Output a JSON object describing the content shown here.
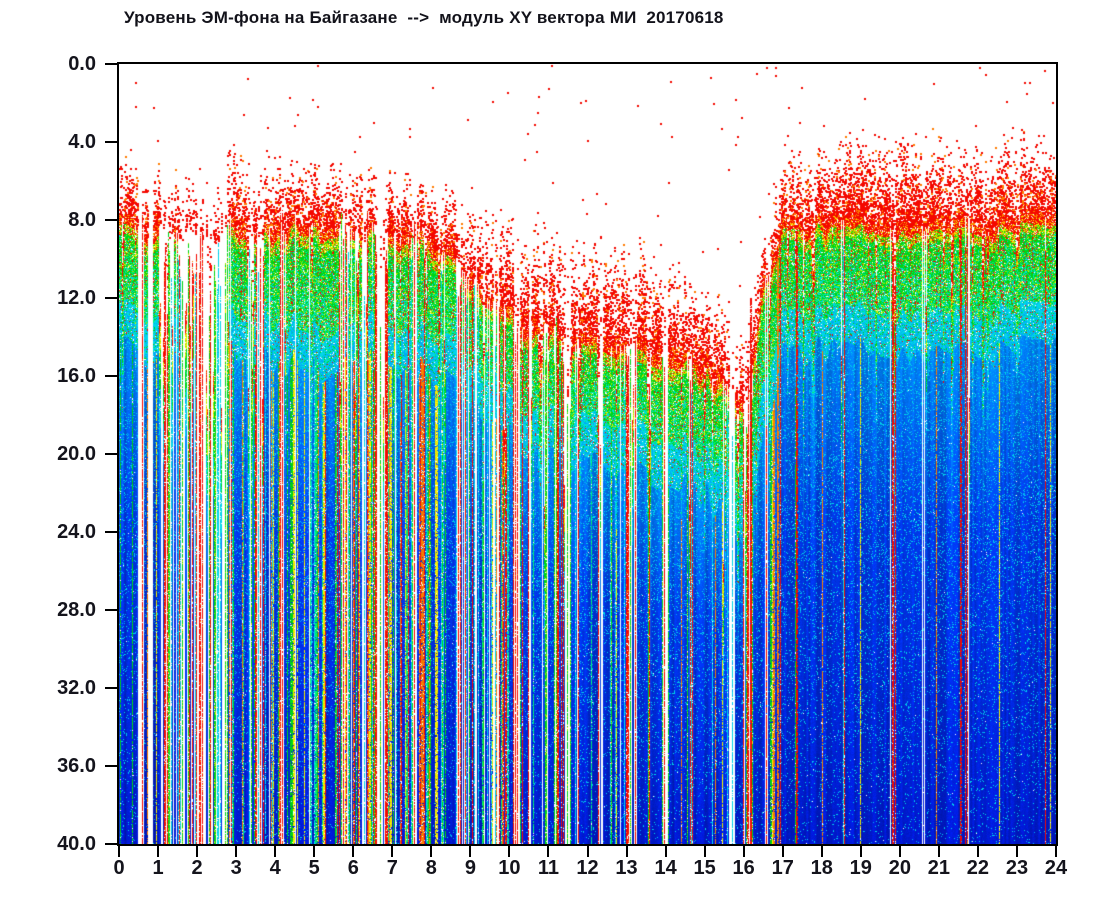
{
  "chart_data": {
    "type": "heatmap",
    "title": "Уровень ЭМ-фона на Байгазане  -->  модуль XY вектора МИ  20170618",
    "x_axis": {
      "min": 0,
      "max": 24,
      "ticks": [
        "0",
        "1",
        "2",
        "3",
        "4",
        "5",
        "6",
        "7",
        "8",
        "9",
        "10",
        "11",
        "12",
        "13",
        "14",
        "15",
        "16",
        "17",
        "18",
        "19",
        "20",
        "21",
        "22",
        "23",
        "24"
      ]
    },
    "y_axis": {
      "min": 0,
      "max": 40,
      "inverted": true,
      "ticks": [
        "0.0",
        "4.0",
        "8.0",
        "12.0",
        "16.0",
        "20.0",
        "24.0",
        "28.0",
        "32.0",
        "36.0",
        "40.0"
      ]
    },
    "palette": {
      "red": "#f40800",
      "orange": "#ff7c00",
      "yellow": "#f4ec00",
      "yellow_green": "#96e400",
      "green": "#00d414",
      "spring": "#00e87c",
      "cyan": "#00d8e8",
      "sky": "#00aaf4",
      "light_blue": "#0080f0",
      "mid_blue": "#0038e6",
      "deep_blue": "#0018cc",
      "white": "#ffffff"
    },
    "render": {
      "seed": 20170618
    },
    "profile_keyframes": [
      {
        "t": 0.0,
        "top": 4.5,
        "dense": 8.2,
        "g1": 9.2,
        "g2": 12.8,
        "c2": 14.8,
        "den": 0.88,
        "deep": 0.3
      },
      {
        "t": 0.4,
        "top": 4.8,
        "dense": 8.3,
        "g1": 9.3,
        "g2": 12.8,
        "c2": 14.8,
        "den": 0.8,
        "deep": 0.3
      },
      {
        "t": 0.55,
        "top": 5.0,
        "dense": 8.3,
        "g1": 9.3,
        "g2": 12.8,
        "c2": 14.8,
        "den": 0.1,
        "deep": 0.28
      },
      {
        "t": 0.9,
        "top": 5.0,
        "dense": 8.4,
        "g1": 9.4,
        "g2": 12.9,
        "c2": 14.9,
        "den": 0.55,
        "deep": 0.3
      },
      {
        "t": 1.5,
        "top": 5.5,
        "dense": 8.6,
        "g1": 9.6,
        "g2": 13.0,
        "c2": 15.0,
        "den": 0.5,
        "deep": 0.3
      },
      {
        "t": 2.0,
        "top": 5.0,
        "dense": 8.6,
        "g1": 9.6,
        "g2": 13.2,
        "c2": 15.2,
        "den": 0.45,
        "deep": 0.3
      },
      {
        "t": 2.55,
        "top": 5.5,
        "dense": 8.8,
        "g1": 9.8,
        "g2": 13.2,
        "c2": 15.2,
        "den": 0.13,
        "deep": 0.28
      },
      {
        "t": 3.0,
        "top": 4.2,
        "dense": 8.3,
        "g1": 9.3,
        "g2": 13.0,
        "c2": 15.0,
        "den": 0.82,
        "deep": 0.3
      },
      {
        "t": 3.5,
        "top": 5.0,
        "dense": 8.5,
        "g1": 9.5,
        "g2": 13.0,
        "c2": 15.0,
        "den": 0.3,
        "deep": 0.3
      },
      {
        "t": 4.0,
        "top": 4.3,
        "dense": 8.4,
        "g1": 9.4,
        "g2": 13.2,
        "c2": 15.2,
        "den": 0.55,
        "deep": 0.35
      },
      {
        "t": 4.6,
        "top": 4.8,
        "dense": 8.3,
        "g1": 9.4,
        "g2": 13.6,
        "c2": 15.6,
        "den": 0.8,
        "deep": 0.45
      },
      {
        "t": 5.4,
        "top": 4.8,
        "dense": 8.3,
        "g1": 9.4,
        "g2": 13.8,
        "c2": 15.8,
        "den": 0.8,
        "deep": 0.5
      },
      {
        "t": 6.0,
        "top": 5.5,
        "dense": 8.6,
        "g1": 9.6,
        "g2": 13.4,
        "c2": 15.4,
        "den": 0.3,
        "deep": 0.45
      },
      {
        "t": 6.6,
        "top": 5.2,
        "dense": 8.6,
        "g1": 9.7,
        "g2": 13.4,
        "c2": 15.4,
        "den": 0.5,
        "deep": 0.45
      },
      {
        "t": 7.2,
        "top": 5.4,
        "dense": 8.8,
        "g1": 9.9,
        "g2": 13.6,
        "c2": 15.6,
        "den": 0.6,
        "deep": 0.5
      },
      {
        "t": 7.8,
        "top": 5.6,
        "dense": 9.0,
        "g1": 10.0,
        "g2": 13.8,
        "c2": 15.8,
        "den": 0.7,
        "deep": 0.5
      },
      {
        "t": 8.4,
        "top": 6.2,
        "dense": 9.6,
        "g1": 10.6,
        "g2": 14.2,
        "c2": 16.2,
        "den": 0.6,
        "deep": 0.45
      },
      {
        "t": 9.0,
        "top": 7.0,
        "dense": 11.0,
        "g1": 12.0,
        "g2": 15.5,
        "c2": 17.5,
        "den": 0.45,
        "deep": 0.3
      },
      {
        "t": 9.6,
        "top": 7.5,
        "dense": 12.3,
        "g1": 13.3,
        "g2": 16.6,
        "c2": 18.6,
        "den": 0.35,
        "deep": 0.25
      },
      {
        "t": 10.2,
        "top": 8.0,
        "dense": 13.0,
        "g1": 14.0,
        "g2": 17.3,
        "c2": 19.3,
        "den": 0.5,
        "deep": 0.15
      },
      {
        "t": 11.0,
        "top": 8.0,
        "dense": 13.5,
        "g1": 14.5,
        "g2": 17.6,
        "c2": 19.8,
        "den": 0.55,
        "deep": 0.15
      },
      {
        "t": 12.0,
        "top": 8.5,
        "dense": 14.0,
        "g1": 15.0,
        "g2": 18.0,
        "c2": 20.2,
        "den": 0.6,
        "deep": 0.12
      },
      {
        "t": 13.0,
        "top": 9.0,
        "dense": 14.5,
        "g1": 15.6,
        "g2": 18.6,
        "c2": 21.0,
        "den": 0.6,
        "deep": 0.12
      },
      {
        "t": 14.0,
        "top": 10.0,
        "dense": 15.0,
        "g1": 16.2,
        "g2": 19.4,
        "c2": 21.6,
        "den": 0.7,
        "deep": 0.1
      },
      {
        "t": 15.0,
        "top": 11.0,
        "dense": 15.6,
        "g1": 16.6,
        "g2": 20.0,
        "c2": 22.2,
        "den": 0.72,
        "deep": 0.1
      },
      {
        "t": 15.7,
        "top": 12.5,
        "dense": 16.6,
        "g1": 17.6,
        "g2": 21.0,
        "c2": 23.0,
        "den": 0.4,
        "deep": 0.15
      },
      {
        "t": 16.1,
        "top": 13.0,
        "dense": 17.2,
        "g1": 18.2,
        "g2": 22.0,
        "c2": 24.0,
        "den": 0.35,
        "deep": 0.2
      },
      {
        "t": 16.5,
        "top": 8.0,
        "dense": 11.0,
        "g1": 12.2,
        "g2": 16.0,
        "c2": 18.5,
        "den": 0.7,
        "deep": 0.25
      },
      {
        "t": 17.0,
        "top": 4.5,
        "dense": 8.3,
        "g1": 9.3,
        "g2": 13.0,
        "c2": 15.0,
        "den": 0.9,
        "deep": 0.08
      },
      {
        "t": 18.0,
        "top": 4.2,
        "dense": 8.2,
        "g1": 9.3,
        "g2": 12.8,
        "c2": 14.8,
        "den": 0.9,
        "deep": 0.06
      },
      {
        "t": 19.0,
        "top": 3.6,
        "dense": 8.2,
        "g1": 9.2,
        "g2": 12.8,
        "c2": 14.8,
        "den": 0.92,
        "deep": 0.05
      },
      {
        "t": 20.0,
        "top": 3.2,
        "dense": 8.2,
        "g1": 9.2,
        "g2": 12.8,
        "c2": 14.8,
        "den": 0.9,
        "deep": 0.05
      },
      {
        "t": 21.0,
        "top": 3.4,
        "dense": 8.2,
        "g1": 9.2,
        "g2": 12.8,
        "c2": 14.8,
        "den": 0.88,
        "deep": 0.06
      },
      {
        "t": 22.0,
        "top": 4.0,
        "dense": 8.2,
        "g1": 9.2,
        "g2": 12.8,
        "c2": 14.8,
        "den": 0.85,
        "deep": 0.06
      },
      {
        "t": 23.0,
        "top": 3.8,
        "dense": 8.2,
        "g1": 9.2,
        "g2": 12.8,
        "c2": 14.8,
        "den": 0.9,
        "deep": 0.05
      },
      {
        "t": 24.0,
        "top": 4.2,
        "dense": 8.2,
        "g1": 9.2,
        "g2": 12.8,
        "c2": 14.8,
        "den": 0.9,
        "deep": 0.05
      }
    ],
    "marker_lines": [
      {
        "t": 16.15,
        "from": 12.0,
        "color": "red"
      },
      {
        "t": 16.85,
        "from": 10.0,
        "color": "orange"
      },
      {
        "t": 17.35,
        "from": 8.5,
        "color": "red"
      },
      {
        "t": 21.55,
        "from": 8.5,
        "color": "red"
      }
    ]
  }
}
